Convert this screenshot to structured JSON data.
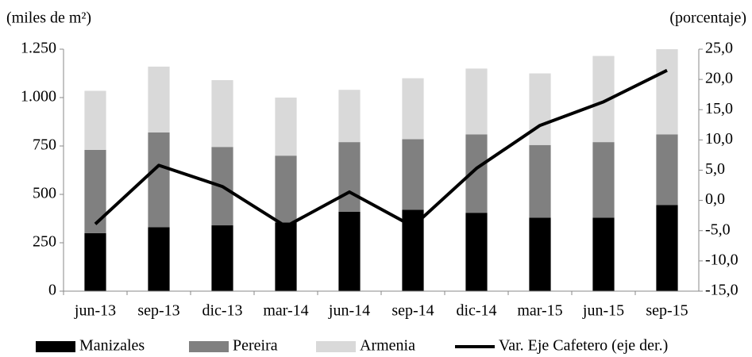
{
  "chart_data": {
    "type": "bar-line",
    "y_label": "(miles de m²)",
    "y2_label": "(porcentaje)",
    "categories": [
      "jun-13",
      "sep-13",
      "dic-13",
      "mar-14",
      "jun-14",
      "sep-14",
      "dic-14",
      "mar-15",
      "jun-15",
      "sep-15"
    ],
    "series": [
      {
        "name": "Manizales",
        "color": "#000000",
        "type": "bar",
        "values": [
          300,
          330,
          340,
          355,
          410,
          420,
          405,
          380,
          380,
          445
        ]
      },
      {
        "name": "Pereira",
        "color": "#808080",
        "type": "bar",
        "values": [
          430,
          490,
          405,
          345,
          360,
          365,
          405,
          375,
          390,
          365
        ]
      },
      {
        "name": "Armenia",
        "color": "#d9d9d9",
        "type": "bar",
        "values": [
          305,
          340,
          345,
          300,
          270,
          315,
          340,
          370,
          445,
          440
        ]
      },
      {
        "name": "Var. Eje Cafetero (eje der.)",
        "color": "#000000",
        "type": "line",
        "axis": "y2",
        "values": [
          -3.9,
          5.8,
          2.3,
          -4.3,
          1.4,
          -4.3,
          5.3,
          12.4,
          16.3,
          21.5
        ]
      }
    ],
    "ylim": [
      0,
      1250
    ],
    "yticks": [
      0,
      250,
      500,
      750,
      {
        "value": 1000,
        "label": "1.000"
      },
      {
        "value": 1250,
        "label": "1.250"
      }
    ],
    "y2lim": [
      -15,
      25
    ],
    "y2ticks": [
      {
        "value": -15,
        "label": "-15,0"
      },
      {
        "value": -10,
        "label": "-10,0"
      },
      {
        "value": -5,
        "label": "-5,0"
      },
      {
        "value": 0,
        "label": "0,0"
      },
      {
        "value": 5,
        "label": "5,0"
      },
      {
        "value": 10,
        "label": "10,0"
      },
      {
        "value": 15,
        "label": "15,0"
      },
      {
        "value": 20,
        "label": "20,0"
      },
      {
        "value": 25,
        "label": "25,0"
      }
    ],
    "stacked": true
  }
}
